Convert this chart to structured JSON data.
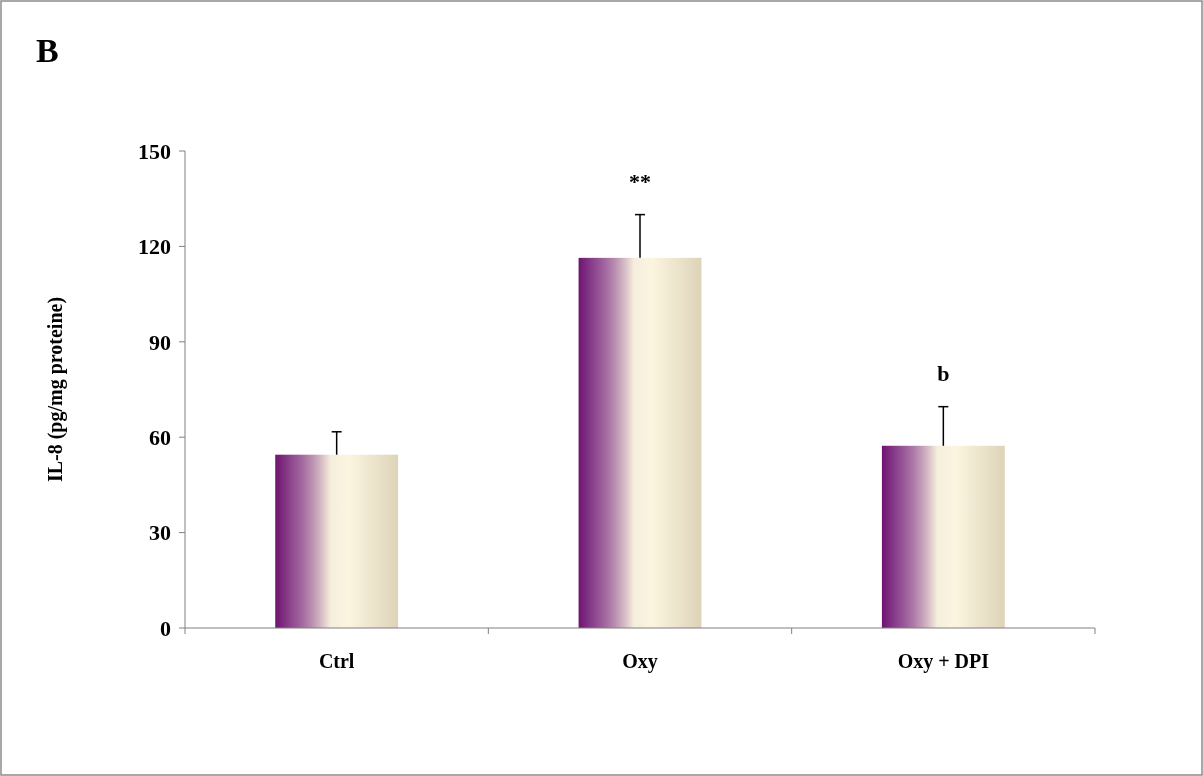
{
  "chart_data": {
    "type": "bar",
    "title": "B",
    "ylabel": "IL-8 (pg/mg proteine)",
    "categories": [
      "Ctrl",
      "Oxy",
      "Oxy + DPI"
    ],
    "values": [
      54.5,
      116.4,
      57.3
    ],
    "errors": [
      [
        54.5,
        61.7
      ],
      [
        116.4,
        130
      ],
      [
        57.3,
        69.6
      ]
    ],
    "color": "#6e1470",
    "ylim": [
      0,
      150
    ],
    "yticks": [
      0,
      30,
      60,
      90,
      120,
      150
    ],
    "annotations": [
      "**",
      "b"
    ]
  }
}
